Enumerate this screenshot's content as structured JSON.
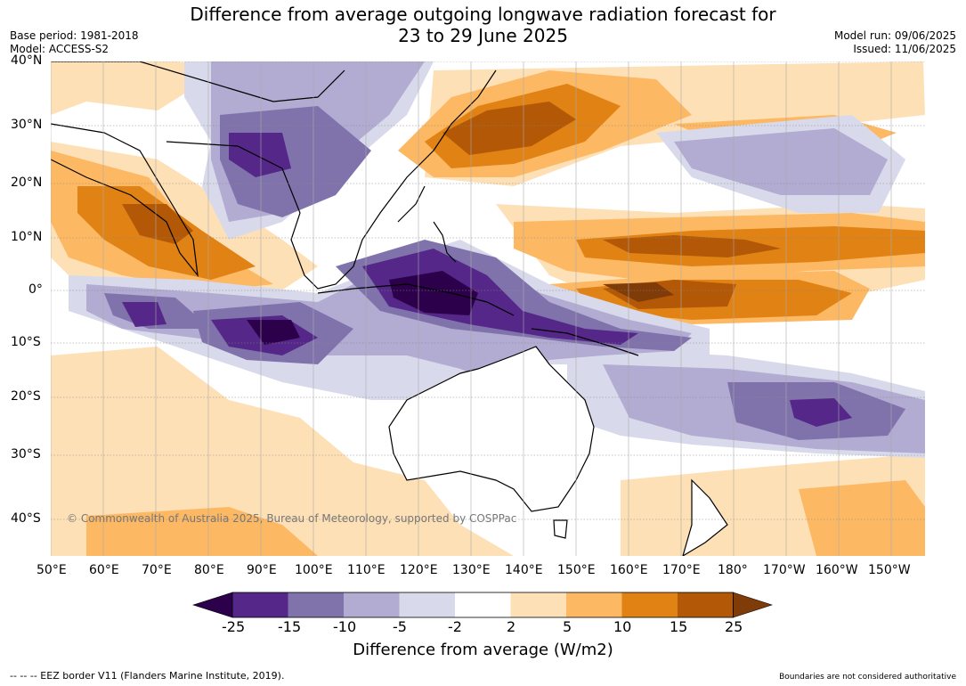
{
  "header": {
    "title_line1": "Difference from average outgoing longwave radiation forecast for",
    "title_line2": "23 to 29 June 2025",
    "base_period": "Base period: 1981-2018",
    "model": "Model: ACCESS-S2",
    "model_run": "Model run: 09/06/2025",
    "issued": "Issued: 11/06/2025"
  },
  "map": {
    "lat_labels": [
      "40°N",
      "30°N",
      "20°N",
      "10°N",
      "0°",
      "10°S",
      "20°S",
      "30°S",
      "40°S"
    ],
    "lon_labels": [
      "50°E",
      "60°E",
      "70°E",
      "80°E",
      "90°E",
      "100°E",
      "110°E",
      "120°E",
      "130°E",
      "140°E",
      "150°E",
      "160°E",
      "170°E",
      "180°",
      "170°W",
      "160°W",
      "150°W"
    ],
    "copyright": "© Commonwealth of Australia 2025, Bureau of Meteorology, supported by COSPPac"
  },
  "colorbar": {
    "title": "Difference from average (W/m2)",
    "ticks": [
      "-25",
      "-15",
      "-10",
      "-5",
      "-2",
      "2",
      "5",
      "10",
      "15",
      "25"
    ],
    "colors": [
      "#2d004b",
      "#542788",
      "#8073ac",
      "#b2abd2",
      "#d8daeb",
      "#ffffff",
      "#fee0b6",
      "#fdb863",
      "#e08214",
      "#b35806",
      "#7f3b08"
    ]
  },
  "footer": {
    "eez_note": "--  --  -- EEZ border V11 (Flanders Marine Institute, 2019).",
    "disclaimer": "Boundaries are not considered authoritative"
  }
}
